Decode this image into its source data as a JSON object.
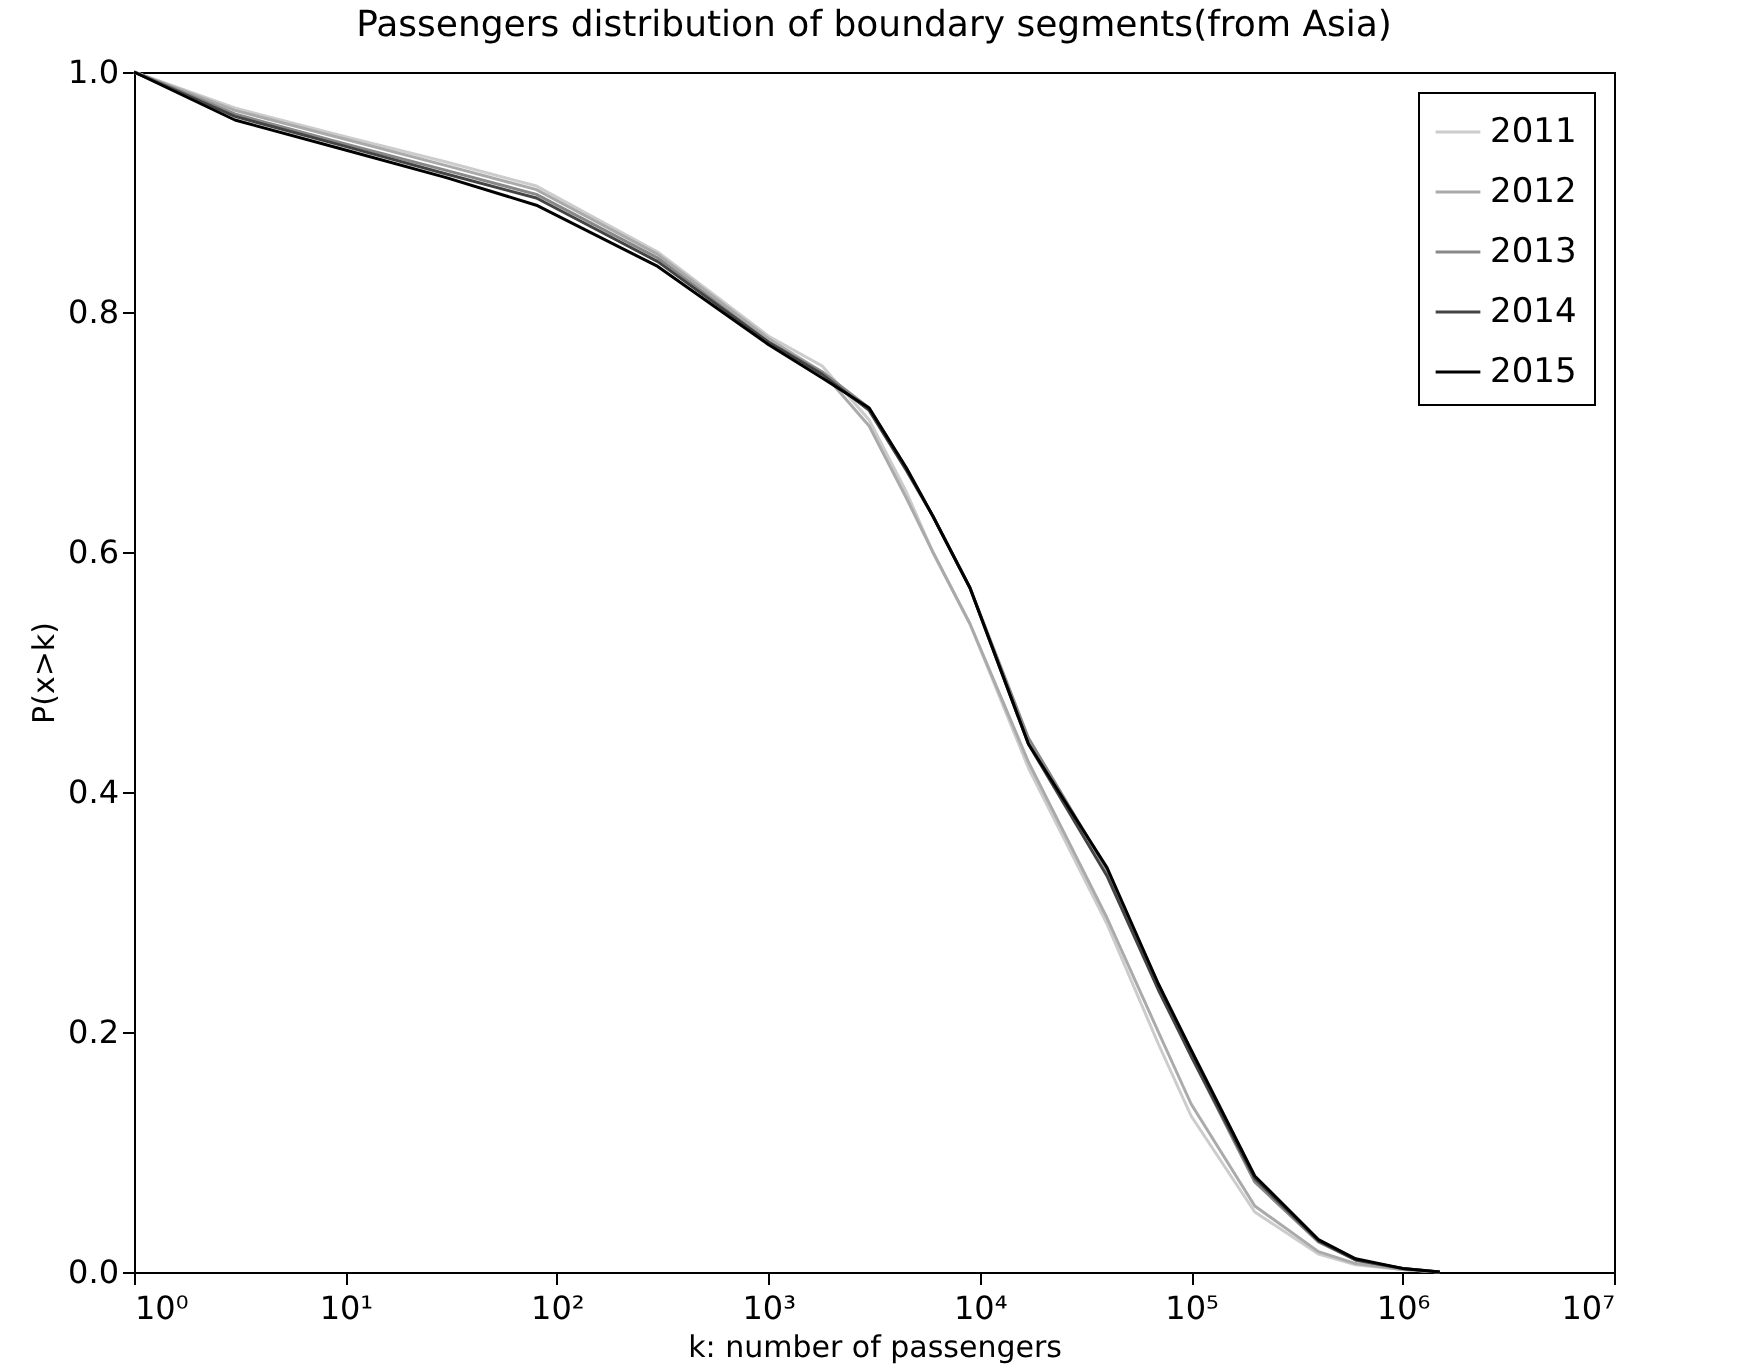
{
  "chart_data": {
    "type": "line",
    "title": "Passengers distribution of boundary segments(from Asia)",
    "xlabel": "k: number of passengers",
    "ylabel": "P(x>k)",
    "log": "x",
    "grid": false,
    "legend": "top right",
    "marker": "none",
    "line_style": "solid",
    "xlim": [
      1,
      10000000
    ],
    "xticks": [
      {
        "value": 1,
        "label": "10⁰"
      },
      {
        "value": 10,
        "label": "10¹"
      },
      {
        "value": 100,
        "label": "10²"
      },
      {
        "value": 1000,
        "label": "10³"
      },
      {
        "value": 10000,
        "label": "10⁴"
      },
      {
        "value": 100000,
        "label": "10⁵"
      },
      {
        "value": 1000000,
        "label": "10⁶"
      },
      {
        "value": 10000000,
        "label": "10⁷"
      }
    ],
    "ylim": [
      0,
      1
    ],
    "yticks": [
      {
        "value": 0,
        "label": "0.0"
      },
      0.2,
      0.4,
      0.6,
      0.8,
      {
        "value": 1,
        "label": "1.0"
      }
    ],
    "x": [
      1,
      3,
      10,
      30,
      80,
      300,
      1000,
      1800,
      3000,
      4500,
      6000,
      9000,
      17000,
      40000,
      70000,
      100000,
      200000,
      400000,
      600000,
      1000000,
      1500000
    ],
    "series": [
      {
        "name": "2011",
        "color": "#cccccc",
        "values": [
          1,
          0.97,
          0.946,
          0.925,
          0.905,
          0.85,
          0.78,
          0.755,
          0.71,
          0.65,
          0.6,
          0.54,
          0.42,
          0.29,
          0.19,
          0.13,
          0.05,
          0.015,
          0.006,
          0.002,
          0
        ]
      },
      {
        "name": "2012",
        "color": "#aaaaaa",
        "values": [
          1,
          0.968,
          0.944,
          0.922,
          0.902,
          0.848,
          0.778,
          0.75,
          0.705,
          0.645,
          0.6,
          0.54,
          0.425,
          0.295,
          0.2,
          0.14,
          0.055,
          0.017,
          0.007,
          0.002,
          0
        ]
      },
      {
        "name": "2013",
        "color": "#888888",
        "values": [
          1,
          0.965,
          0.94,
          0.918,
          0.898,
          0.845,
          0.775,
          0.75,
          0.72,
          0.67,
          0.63,
          0.57,
          0.445,
          0.335,
          0.24,
          0.18,
          0.075,
          0.025,
          0.01,
          0.003,
          0
        ]
      },
      {
        "name": "2014",
        "color": "#444444",
        "values": [
          1,
          0.963,
          0.938,
          0.915,
          0.895,
          0.842,
          0.775,
          0.748,
          0.718,
          0.668,
          0.63,
          0.57,
          0.44,
          0.33,
          0.235,
          0.18,
          0.078,
          0.026,
          0.01,
          0.003,
          0
        ]
      },
      {
        "name": "2015",
        "color": "#000000",
        "values": [
          1,
          0.96,
          0.935,
          0.912,
          0.889,
          0.838,
          0.773,
          0.745,
          0.72,
          0.67,
          0.63,
          0.57,
          0.44,
          0.337,
          0.24,
          0.185,
          0.08,
          0.027,
          0.011,
          0.003,
          0
        ]
      }
    ]
  }
}
